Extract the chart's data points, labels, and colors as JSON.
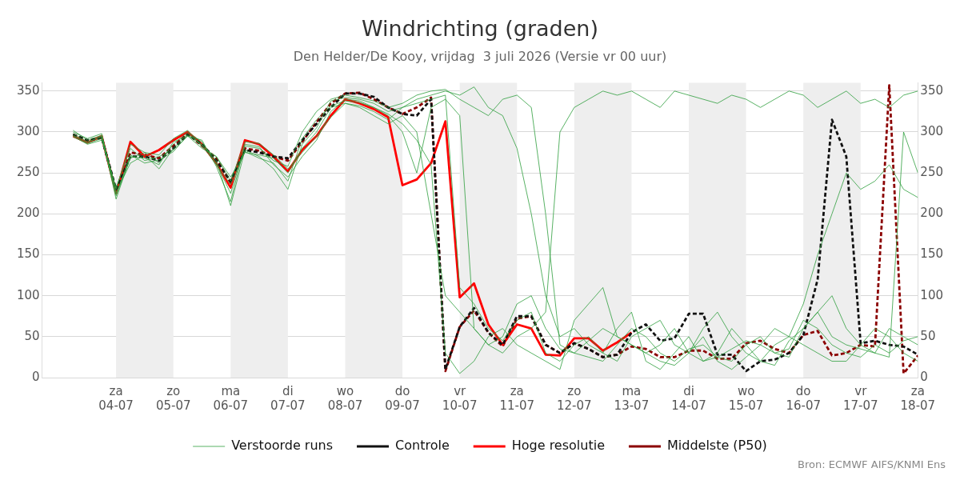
{
  "chart_data": {
    "type": "line",
    "title": "Windrichting (graden)",
    "subtitle": "Den Helder/De Kooy, vrijdag  3 juli 2026 (Versie vr 00 uur)",
    "x": [
      "2026-07-03T06:00",
      "2026-07-03T12:00",
      "2026-07-03T18:00",
      "2026-07-04T00:00",
      "2026-07-04T06:00",
      "2026-07-04T12:00",
      "2026-07-04T18:00",
      "2026-07-05T00:00",
      "2026-07-05T06:00",
      "2026-07-05T12:00",
      "2026-07-05T18:00",
      "2026-07-06T00:00",
      "2026-07-06T06:00",
      "2026-07-06T12:00",
      "2026-07-06T18:00",
      "2026-07-07T00:00",
      "2026-07-07T06:00",
      "2026-07-07T12:00",
      "2026-07-07T18:00",
      "2026-07-08T00:00",
      "2026-07-08T06:00",
      "2026-07-08T12:00",
      "2026-07-08T18:00",
      "2026-07-09T00:00",
      "2026-07-09T06:00",
      "2026-07-09T12:00",
      "2026-07-09T18:00",
      "2026-07-10T00:00",
      "2026-07-10T06:00",
      "2026-07-10T12:00",
      "2026-07-10T18:00",
      "2026-07-11T00:00",
      "2026-07-11T06:00",
      "2026-07-11T12:00",
      "2026-07-11T18:00",
      "2026-07-12T00:00",
      "2026-07-12T06:00",
      "2026-07-12T12:00",
      "2026-07-12T18:00",
      "2026-07-13T00:00",
      "2026-07-13T06:00",
      "2026-07-13T12:00",
      "2026-07-13T18:00",
      "2026-07-14T00:00",
      "2026-07-14T06:00",
      "2026-07-14T12:00",
      "2026-07-14T18:00",
      "2026-07-15T00:00",
      "2026-07-15T06:00",
      "2026-07-15T12:00",
      "2026-07-15T18:00",
      "2026-07-16T00:00",
      "2026-07-16T06:00",
      "2026-07-16T12:00",
      "2026-07-16T18:00",
      "2026-07-17T00:00",
      "2026-07-17T06:00",
      "2026-07-17T12:00",
      "2026-07-17T18:00",
      "2026-07-18T00:00"
    ],
    "series": [
      {
        "name": "Verstoorde runs",
        "color": "#2e9e3e",
        "line_style": "solid",
        "values": [
          300,
          292,
          298,
          222,
          268,
          275,
          262,
          285,
          300,
          288,
          262,
          225,
          283,
          280,
          265,
          258,
          300,
          325,
          340,
          345,
          342,
          338,
          330,
          335,
          345,
          350,
          352,
          340,
          330,
          320,
          340,
          345,
          330,
          200,
          40,
          30,
          25,
          20,
          40,
          60,
          50,
          30,
          20,
          35,
          40,
          25,
          20,
          40,
          50,
          30,
          25,
          60,
          80,
          50,
          40,
          35,
          30,
          60,
          50,
          40
        ]
      },
      {
        "color": "#2e9e3e",
        "line_style": "solid",
        "values": [
          295,
          285,
          290,
          232,
          280,
          265,
          270,
          278,
          295,
          280,
          270,
          245,
          275,
          272,
          268,
          250,
          280,
          300,
          330,
          335,
          330,
          320,
          310,
          320,
          300,
          200,
          100,
          80,
          60,
          40,
          50,
          90,
          100,
          60,
          35,
          30,
          45,
          60,
          50,
          40,
          30,
          40,
          60,
          30,
          20,
          25,
          35,
          45,
          40,
          30,
          35,
          70,
          60,
          40,
          30,
          25,
          40,
          30,
          45,
          50
        ]
      },
      {
        "color": "#2e9e3e",
        "line_style": "solid",
        "values": [
          302,
          290,
          296,
          218,
          270,
          268,
          260,
          288,
          295,
          290,
          258,
          215,
          285,
          282,
          260,
          245,
          270,
          290,
          325,
          340,
          338,
          330,
          320,
          300,
          250,
          330,
          340,
          320,
          60,
          40,
          30,
          50,
          60,
          80,
          300,
          330,
          340,
          350,
          345,
          350,
          340,
          330,
          350,
          345,
          340,
          335,
          345,
          340,
          330,
          340,
          350,
          345,
          330,
          340,
          350,
          335,
          340,
          330,
          345,
          350
        ]
      },
      {
        "color": "#2e9e3e",
        "line_style": "solid",
        "values": [
          298,
          288,
          294,
          226,
          262,
          272,
          255,
          280,
          298,
          285,
          265,
          210,
          278,
          270,
          255,
          230,
          285,
          305,
          338,
          342,
          340,
          335,
          325,
          330,
          335,
          340,
          345,
          110,
          90,
          60,
          45,
          70,
          80,
          30,
          20,
          40,
          50,
          30,
          60,
          80,
          20,
          10,
          30,
          50,
          20,
          30,
          60,
          40,
          20,
          15,
          45,
          60,
          80,
          100,
          60,
          40,
          30,
          25,
          300,
          250
        ]
      },
      {
        "color": "#2e9e3e",
        "line_style": "solid",
        "values": [
          296,
          287,
          295,
          230,
          285,
          275,
          272,
          292,
          302,
          282,
          270,
          240,
          288,
          286,
          272,
          255,
          275,
          295,
          318,
          335,
          332,
          325,
          315,
          330,
          340,
          345,
          350,
          345,
          355,
          330,
          320,
          280,
          200,
          100,
          50,
          60,
          40,
          30,
          20,
          50,
          60,
          70,
          40,
          30,
          60,
          80,
          50,
          30,
          20,
          40,
          50,
          90,
          150,
          200,
          250,
          230,
          240,
          260,
          230,
          220
        ]
      },
      {
        "color": "#2e9e3e",
        "line_style": "solid",
        "values": [
          294,
          286,
          292,
          224,
          272,
          262,
          266,
          276,
          296,
          284,
          260,
          236,
          276,
          268,
          262,
          240,
          292,
          315,
          332,
          338,
          336,
          330,
          322,
          310,
          290,
          260,
          30,
          5,
          20,
          50,
          60,
          40,
          30,
          20,
          10,
          70,
          90,
          110,
          50,
          40,
          30,
          20,
          15,
          30,
          50,
          20,
          10,
          25,
          40,
          60,
          50,
          40,
          30,
          20,
          20,
          40,
          60,
          50,
          30,
          20
        ]
      },
      {
        "name": "Controle",
        "color": "#111111",
        "line_style": "dashed",
        "values": [
          297,
          290,
          293,
          230,
          270,
          270,
          265,
          280,
          297,
          285,
          265,
          240,
          278,
          275,
          270,
          268,
          290,
          310,
          330,
          347,
          347,
          343,
          330,
          322,
          320,
          340,
          10,
          62,
          85,
          55,
          40,
          75,
          75,
          40,
          30,
          42,
          35,
          25,
          28,
          55,
          65,
          45,
          48,
          78,
          78,
          28,
          28,
          8,
          20,
          22,
          30,
          52,
          120,
          315,
          270,
          42,
          45,
          40,
          38,
          28
        ]
      },
      {
        "name": "Hoge resolutie",
        "color": "#ff0000",
        "line_style": "solid",
        "values": [
          295,
          287,
          295,
          225,
          288,
          270,
          278,
          290,
          300,
          285,
          262,
          232,
          290,
          285,
          270,
          252,
          278,
          295,
          320,
          340,
          335,
          328,
          318,
          235,
          242,
          262,
          313,
          98,
          115,
          65,
          40,
          65,
          60,
          28,
          27,
          48,
          48,
          33,
          43,
          55,
          null,
          null,
          null,
          null,
          null,
          null,
          null,
          null,
          null,
          null,
          null,
          null,
          null,
          null,
          null,
          null,
          null,
          null,
          null,
          null
        ]
      },
      {
        "name": "Middelste (P50)",
        "color": "#8b0000",
        "line_style": "dashed",
        "values": [
          297,
          289,
          293,
          228,
          275,
          272,
          268,
          283,
          298,
          283,
          268,
          238,
          280,
          277,
          270,
          265,
          288,
          312,
          335,
          347,
          348,
          340,
          330,
          322,
          330,
          342,
          8,
          62,
          82,
          55,
          38,
          72,
          75,
          40,
          30,
          42,
          35,
          25,
          28,
          38,
          35,
          25,
          25,
          33,
          33,
          23,
          23,
          42,
          45,
          35,
          30,
          52,
          57,
          27,
          30,
          40,
          38,
          357,
          5,
          27
        ]
      }
    ],
    "xlim": [
      "2026-07-02T17:00",
      "2026-07-18T00:00"
    ],
    "xticks": [
      {
        "value": "2026-07-04",
        "label": "za\n04-07"
      },
      {
        "value": "2026-07-05",
        "label": "zo\n05-07"
      },
      {
        "value": "2026-07-06",
        "label": "ma\n06-07"
      },
      {
        "value": "2026-07-07",
        "label": "di\n07-07"
      },
      {
        "value": "2026-07-08",
        "label": "wo\n08-07"
      },
      {
        "value": "2026-07-09",
        "label": "do\n09-07"
      },
      {
        "value": "2026-07-10",
        "label": "vr\n10-07"
      },
      {
        "value": "2026-07-11",
        "label": "za\n11-07"
      },
      {
        "value": "2026-07-12",
        "label": "zo\n12-07"
      },
      {
        "value": "2026-07-13",
        "label": "ma\n13-07"
      },
      {
        "value": "2026-07-14",
        "label": "di\n14-07"
      },
      {
        "value": "2026-07-15",
        "label": "wo\n15-07"
      },
      {
        "value": "2026-07-16",
        "label": "do\n16-07"
      },
      {
        "value": "2026-07-17",
        "label": "vr\n17-07"
      },
      {
        "value": "2026-07-18",
        "label": "za\n18-07"
      }
    ],
    "ylim": [
      0,
      360
    ],
    "yticks": [
      0,
      50,
      100,
      150,
      200,
      250,
      300,
      350
    ],
    "y2lim": [
      0,
      360
    ],
    "y2ticks": [
      0,
      50,
      100,
      150,
      200,
      250,
      300,
      350
    ],
    "bands": [
      {
        "axis": "x",
        "from": "2026-07-04",
        "to": "2026-07-05",
        "color": "#eeeeee"
      },
      {
        "axis": "x",
        "from": "2026-07-06",
        "to": "2026-07-07",
        "color": "#eeeeee"
      },
      {
        "axis": "x",
        "from": "2026-07-08",
        "to": "2026-07-09",
        "color": "#eeeeee"
      },
      {
        "axis": "x",
        "from": "2026-07-10",
        "to": "2026-07-11",
        "color": "#eeeeee"
      },
      {
        "axis": "x",
        "from": "2026-07-12",
        "to": "2026-07-13",
        "color": "#eeeeee"
      },
      {
        "axis": "x",
        "from": "2026-07-14",
        "to": "2026-07-15",
        "color": "#eeeeee"
      },
      {
        "axis": "x",
        "from": "2026-07-16",
        "to": "2026-07-17",
        "color": "#eeeeee"
      }
    ],
    "grid": "y",
    "legend": "bottom",
    "marker": "none",
    "annotations": [
      "Bron: ECMWF AIFS/KNMI Ens"
    ]
  }
}
